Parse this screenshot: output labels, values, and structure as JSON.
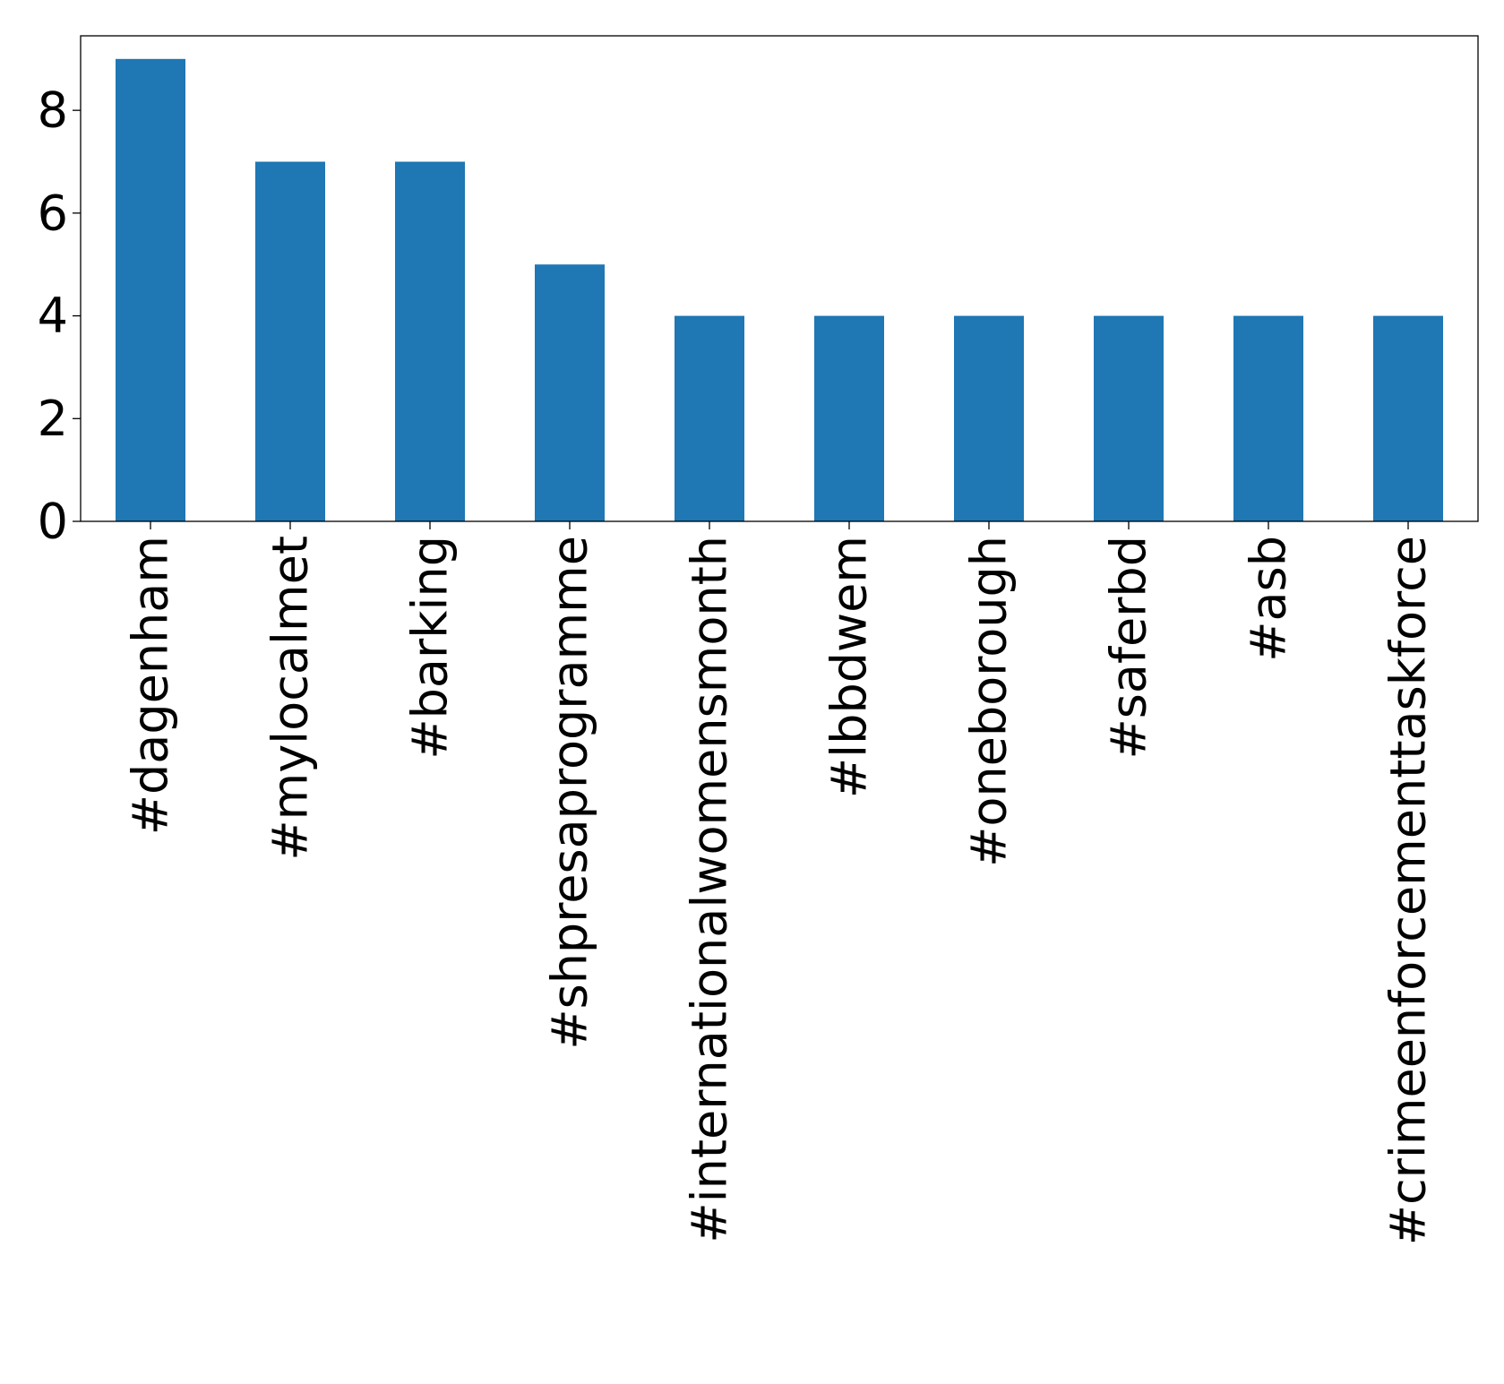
{
  "chart_data": {
    "type": "bar",
    "title": "",
    "xlabel": "",
    "ylabel": "",
    "categories": [
      "#dagenham",
      "#mylocalmet",
      "#barking",
      "#shpresaprogramme",
      "#internationalwomensmonth",
      "#lbbdwem",
      "#oneborough",
      "#saferbd",
      "#asb",
      "#crimeenforcementtaskforce"
    ],
    "values": [
      9,
      7,
      7,
      5,
      4,
      4,
      4,
      4,
      4,
      4
    ],
    "ylim": [
      0,
      9.45
    ],
    "yticks": [
      0,
      2,
      4,
      6,
      8
    ],
    "grid": false,
    "legend": "none",
    "bar_color": "#1f77b4",
    "axis_color": "#000000"
  }
}
